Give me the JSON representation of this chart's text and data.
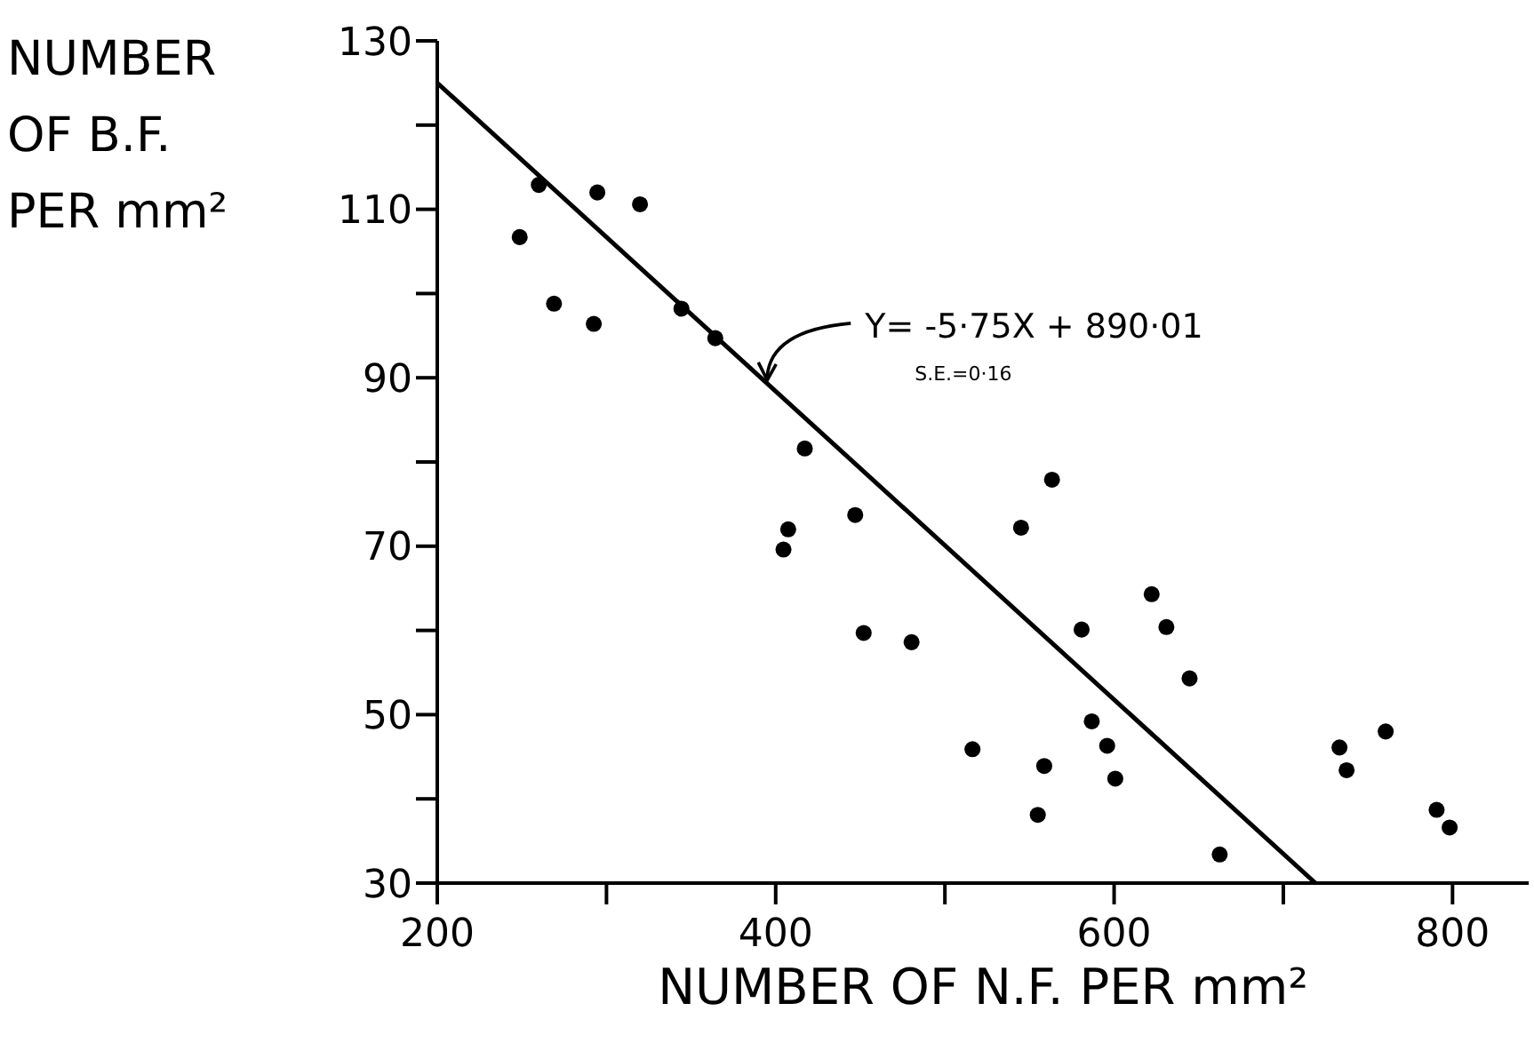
{
  "chart_data": {
    "type": "scatter",
    "xlabel": "NUMBER OF N.F. PER mm²",
    "ylabel": "NUMBER OF B.F. PER mm²",
    "series": [
      {
        "color": "#000000",
        "marker": "circle",
        "x": [
          248.7,
          260,
          269,
          294.6,
          292.5,
          319.8,
          344.3,
          364.3,
          417.2,
          407.4,
          404.6,
          447,
          452,
          480.3,
          516.3,
          545,
          563.3,
          580.8,
          586.8,
          595.9,
          558.7,
          600.7,
          554.9,
          622.2,
          630.9,
          644.6,
          662.4,
          733.2,
          737.4,
          760.5,
          790.6,
          798.3
        ],
        "values": [
          106.7,
          112.9,
          98.8,
          112,
          96.4,
          110.6,
          98.2,
          94.7,
          81.6,
          72,
          69.6,
          73.7,
          59.7,
          58.6,
          45.9,
          72.2,
          77.9,
          60.1,
          49.2,
          46.3,
          43.9,
          42.4,
          38.1,
          64.3,
          60.4,
          54.3,
          33.4,
          46.1,
          43.4,
          48,
          38.7,
          36.6
        ]
      },
      {
        "type": "line",
        "color": "#000000",
        "marker": "none",
        "x": [
          200,
          719
        ],
        "values": [
          125,
          30
        ]
      }
    ],
    "annotations": [
      {
        "text": "Y= -5·75X + 890·01",
        "x": 395,
        "y": 89.3
      },
      "S.E.=0·16"
    ],
    "xlim": [
      200,
      845
    ],
    "xticks": [
      200,
      {
        "value": 300,
        "label": null
      },
      400,
      {
        "value": 500,
        "label": null
      },
      600,
      {
        "value": 700,
        "label": null
      },
      800
    ],
    "ylim": [
      30,
      130
    ],
    "yticks": [
      30,
      {
        "value": 40,
        "label": null
      },
      50,
      {
        "value": 60,
        "label": null
      },
      70,
      {
        "value": 80,
        "label": null
      },
      90,
      {
        "value": 100,
        "label": null
      },
      110,
      {
        "value": 120,
        "label": null
      },
      130
    ],
    "tick_labels": true
  }
}
